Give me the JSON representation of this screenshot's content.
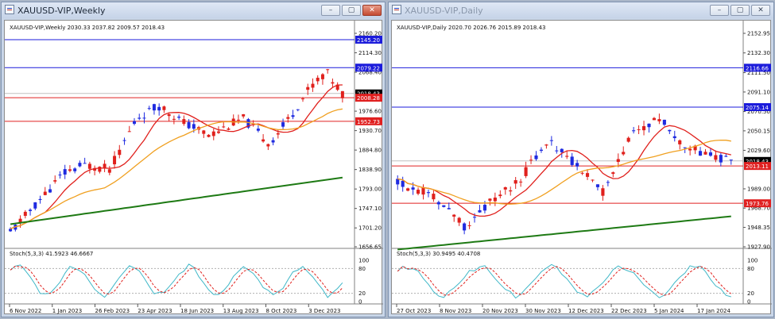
{
  "left": {
    "window_title": "XAUUSD-VIP,Weekly",
    "header": "XAUUSD-VIP,Weekly  2030.33 2037.82 2009.57 2018.43",
    "price_ticks": [
      "2160.20",
      "2114.30",
      "2068.40",
      "1976.60",
      "1930.70",
      "1884.80",
      "1838.90",
      "1793.00",
      "1747.10",
      "1701.20",
      "1656.65"
    ],
    "level_labels": [
      {
        "text": "2145.20",
        "color": "#1b1bdb",
        "value": 2145.2
      },
      {
        "text": "2079.22",
        "color": "#1b1bdb",
        "value": 2079.22
      },
      {
        "text": "2018.43",
        "color": "#000000",
        "value": 2018.43
      },
      {
        "text": "2008.28",
        "color": "#e02020",
        "value": 2008.28
      },
      {
        "text": "1952.73",
        "color": "#e02020",
        "value": 1952.73
      }
    ],
    "stoch_label": "Stoch(5,3,3) 41.5923 46.6667",
    "stoch_ticks": [
      "100",
      "80",
      "20",
      "0"
    ],
    "dates": [
      "6 Nov 2022",
      "1 Jan 2023",
      "26 Feb 2023",
      "23 Apr 2023",
      "18 Jun 2023",
      "13 Aug 2023",
      "8 Oct 2023",
      "3 Dec 2023"
    ]
  },
  "right": {
    "window_title": "XAUUSD-VIP,Daily",
    "header": "XAUUSD-VIP,Daily  2020.70 2026.76 2015.89 2018.43",
    "price_ticks": [
      "2152.95",
      "2132.30",
      "2111.50",
      "2091.10",
      "2070.50",
      "2050.15",
      "2029.60",
      "1989.00",
      "1968.70",
      "1948.35",
      "1927.90"
    ],
    "level_labels": [
      {
        "text": "2116.66",
        "color": "#1b1bdb",
        "value": 2116.66
      },
      {
        "text": "2075.14",
        "color": "#1b1bdb",
        "value": 2075.14
      },
      {
        "text": "2018.43",
        "color": "#000000",
        "value": 2018.43
      },
      {
        "text": "2013.11",
        "color": "#e02020",
        "value": 2013.11
      },
      {
        "text": "1973.76",
        "color": "#e02020",
        "value": 1973.76
      }
    ],
    "stoch_label": "Stoch(5,3,3) 30.9495 40.4708",
    "stoch_ticks": [
      "100",
      "80",
      "20",
      "0"
    ],
    "dates": [
      "27 Oct 2023",
      "8 Nov 2023",
      "20 Nov 2023",
      "30 Nov 2023",
      "12 Dec 2023",
      "22 Dec 2023",
      "5 Jan 2024",
      "17 Jan 2024"
    ]
  },
  "buttons": {
    "minimize": "–",
    "maximize": "▢",
    "close": "✕"
  },
  "colors": {
    "bull": "#1f2be0",
    "bear": "#e0201c",
    "ma_fast": "#e0201c",
    "ma_mid": "#f0a020",
    "ma_slow": "#1e7a14",
    "stoch_main": "#40b8c8",
    "stoch_signal": "#e0201c"
  }
}
